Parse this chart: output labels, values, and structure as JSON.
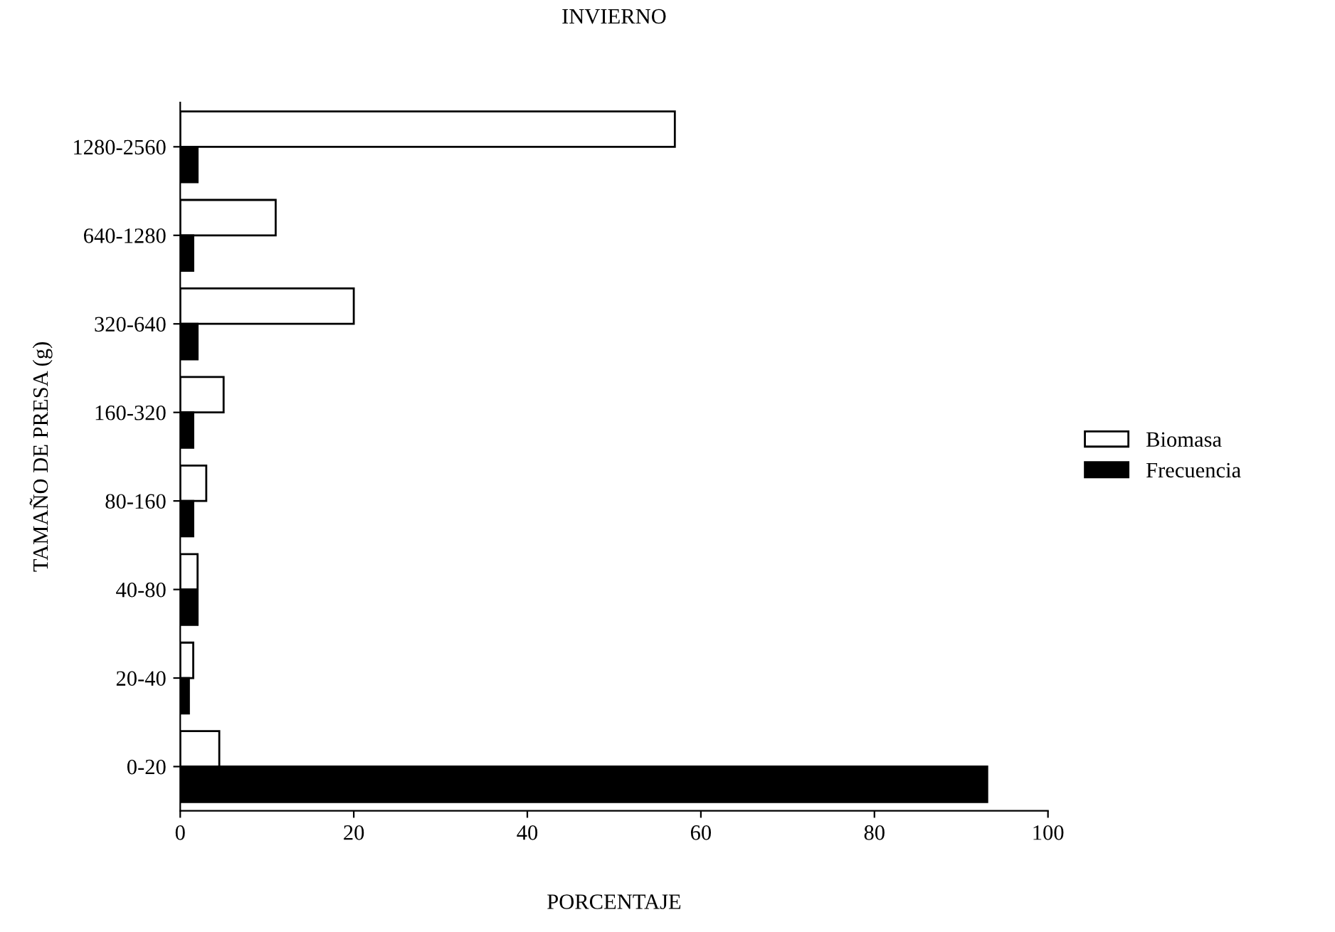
{
  "chart_data": {
    "type": "bar",
    "orientation": "horizontal",
    "title": "INVIERNO",
    "xlabel": "PORCENTAJE",
    "ylabel": "TAMAÑO DE PRESA (g)",
    "categories": [
      "1280-2560",
      "640-1280",
      "320-640",
      "160-320",
      "80-160",
      "40-80",
      "20-40",
      "0-20"
    ],
    "series": [
      {
        "name": "Biomasa",
        "color": "#ffffff",
        "values": [
          57,
          11,
          20,
          5,
          3,
          2,
          1.5,
          4.5
        ]
      },
      {
        "name": "Frecuencia",
        "color": "#000000",
        "values": [
          2,
          1.5,
          2,
          1.5,
          1.5,
          2,
          1,
          93
        ]
      }
    ],
    "xlim": [
      0,
      100
    ],
    "xticks": [
      0,
      20,
      40,
      60,
      80,
      100
    ],
    "legend": "right",
    "grid": false
  }
}
